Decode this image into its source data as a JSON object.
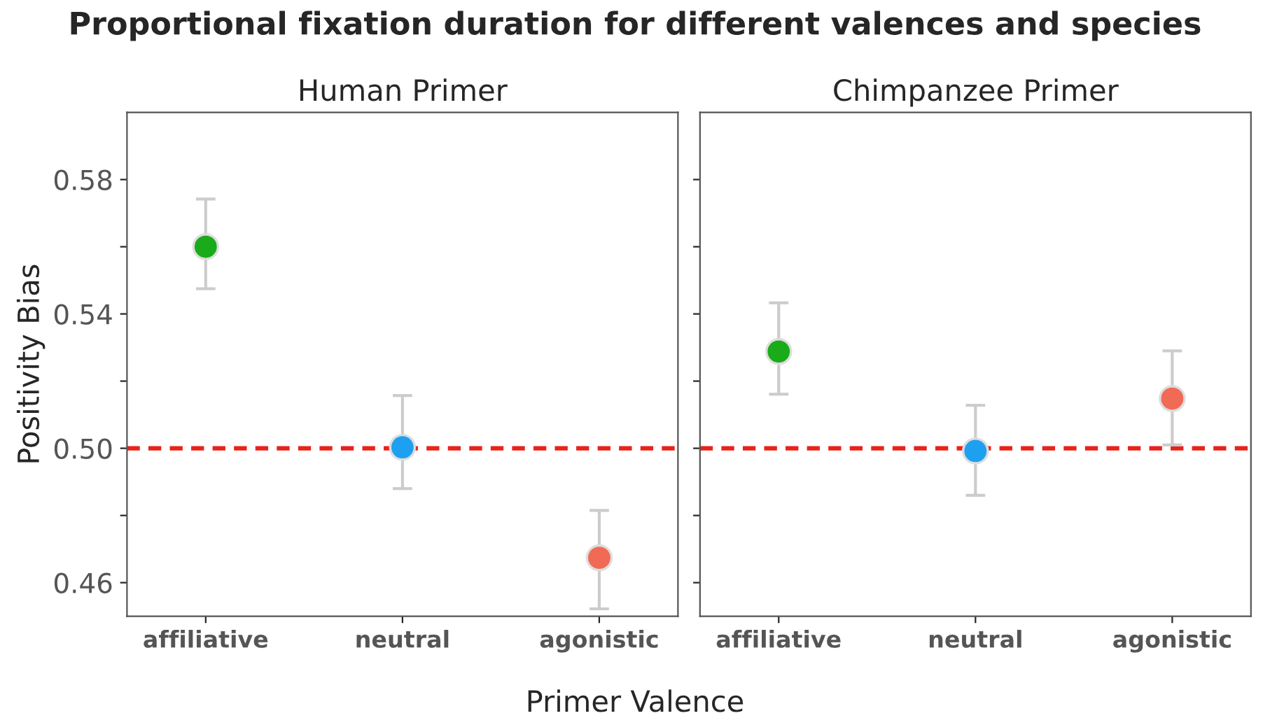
{
  "chart_data": [
    {
      "type": "scatter",
      "title": "Human Primer",
      "ylabel": "Positivity Bias",
      "xlabel": "Primer Valence",
      "annotations": [
        "Proportional fixation duration for different valences and species"
      ],
      "categories": [
        "affiliative",
        "neutral",
        "agonistic"
      ],
      "values": [
        0.56,
        0.5003,
        0.4674
      ],
      "colors": [
        "#1aab1a",
        "#1ea0f0",
        "#f06a55"
      ],
      "errors": [
        [
          0.5475,
          0.5742
        ],
        [
          0.488,
          0.5157
        ],
        [
          0.4522,
          0.4815
        ]
      ],
      "ylim": [
        0.45,
        0.6
      ],
      "yticks": [
        {
          "value": 0.46,
          "label": "0.46"
        },
        {
          "value": 0.48,
          "label": null
        },
        {
          "value": 0.5,
          "label": "0.50"
        },
        {
          "value": 0.52,
          "label": null
        },
        {
          "value": 0.54,
          "label": "0.54"
        },
        {
          "value": 0.56,
          "label": null
        },
        {
          "value": 0.58,
          "label": "0.58"
        }
      ],
      "ref_lines": [
        {
          "axis": "y",
          "value": 0.5,
          "color": "#e8231a",
          "line_style": "dashed"
        }
      ],
      "marker": "circle",
      "grid": false
    },
    {
      "type": "scatter",
      "title": "Chimpanzee Primer",
      "categories": [
        "affiliative",
        "neutral",
        "agonistic"
      ],
      "values": [
        0.5288,
        0.4992,
        0.5148
      ],
      "colors": [
        "#1aab1a",
        "#1ea0f0",
        "#f06a55"
      ],
      "errors": [
        [
          0.5161,
          0.5433
        ],
        [
          0.486,
          0.5128
        ],
        [
          0.501,
          0.529
        ]
      ],
      "ylim": [
        0.45,
        0.6
      ],
      "yticks": [
        {
          "value": 0.46,
          "label": null
        },
        {
          "value": 0.48,
          "label": null
        },
        {
          "value": 0.5,
          "label": null
        },
        {
          "value": 0.52,
          "label": null
        },
        {
          "value": 0.54,
          "label": null
        },
        {
          "value": 0.56,
          "label": null
        },
        {
          "value": 0.58,
          "label": null
        }
      ],
      "tick_labels": "x",
      "ref_lines": [
        {
          "axis": "y",
          "value": 0.5,
          "color": "#e8231a",
          "line_style": "dashed"
        }
      ],
      "marker": "circle",
      "grid": false
    }
  ]
}
